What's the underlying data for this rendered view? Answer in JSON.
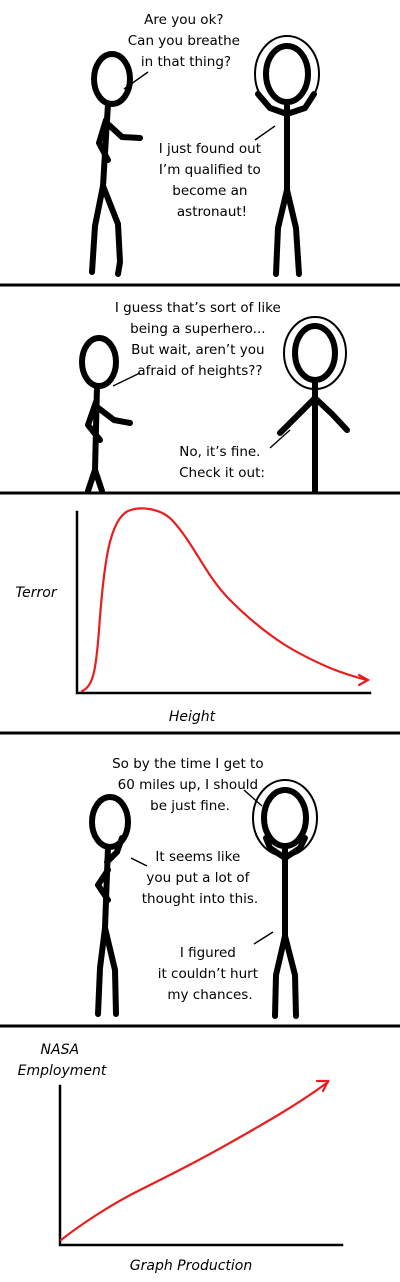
{
  "panel1": {
    "left_speech": [
      "Are you ok?",
      "Can you breathe",
      "in that thing?"
    ],
    "right_speech": [
      "I just found out",
      "I’m qualified to",
      "become an",
      "astronaut!"
    ]
  },
  "panel2": {
    "left_speech": [
      "I guess that’s sort of like",
      "being a superhero...",
      "But wait, aren’t you",
      "afraid of heights??"
    ],
    "right_speech": [
      "No, it’s fine.",
      "Check it out:"
    ]
  },
  "chart_data": [
    {
      "type": "line",
      "ylabel": "Terror",
      "xlabel": "Height",
      "series": [
        {
          "color": "#e81e1e",
          "shape": "rapid rise to an early peak, then long decay (arrow at end)"
        }
      ]
    },
    {
      "type": "line",
      "ylabel": "NASA\nEmployment",
      "xlabel": "Graph Production",
      "series": [
        {
          "color": "#e81e1e",
          "shape": "steady increase (arrow at end)"
        }
      ]
    }
  ],
  "panel4": {
    "right_top_speech": [
      "So by the time I get to",
      "60 miles up, I should",
      "be just fine."
    ],
    "left_speech": [
      "It seems like",
      "you put a lot of",
      "thought into this."
    ],
    "right_bottom_speech": [
      "I figured",
      "it couldn’t hurt",
      "my chances."
    ]
  },
  "colors": {
    "line": "#e81e1e",
    "ink": "#000000",
    "background": "#ffffff"
  }
}
